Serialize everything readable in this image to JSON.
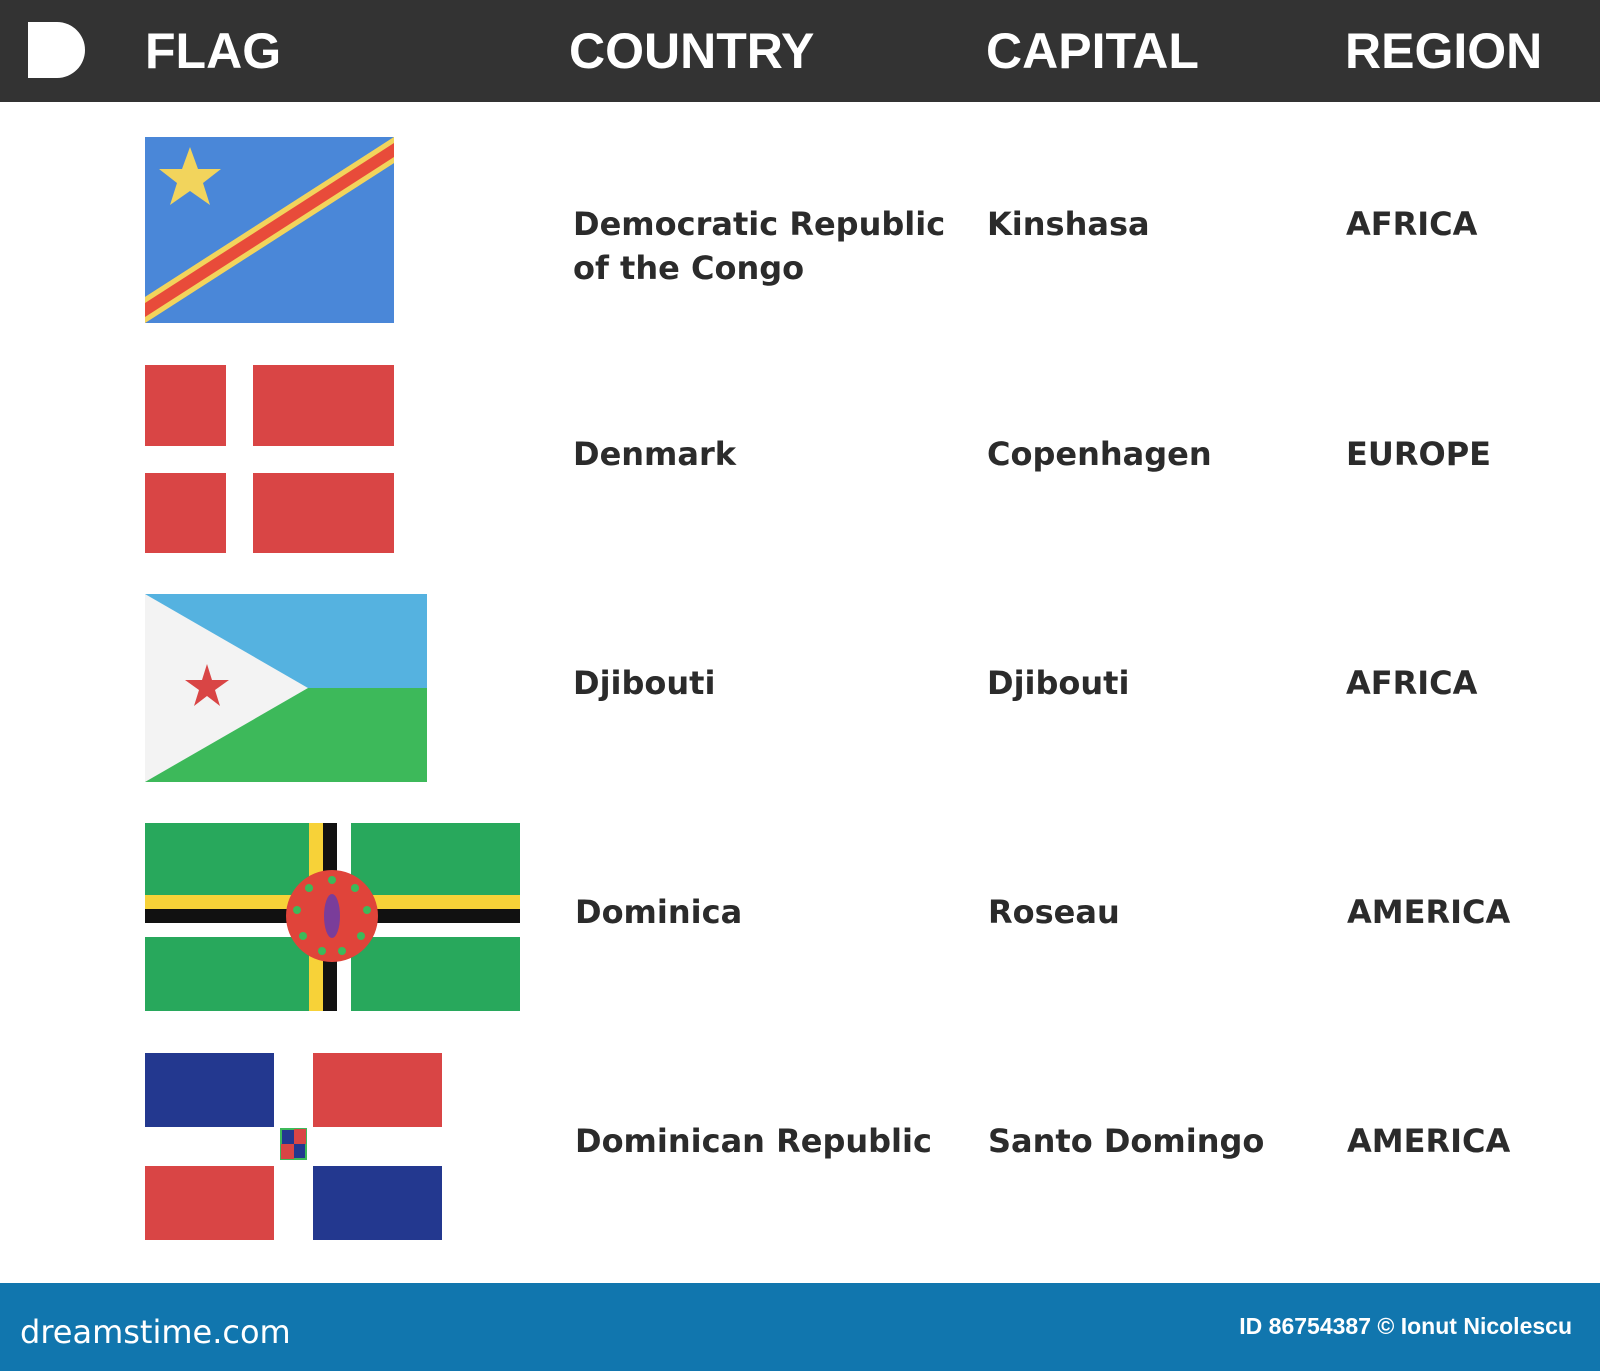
{
  "header": {
    "logo": "D",
    "columns": [
      "FLAG",
      "COUNTRY",
      "CAPITAL",
      "REGION"
    ]
  },
  "rows": [
    {
      "flag": "flag-dr-congo",
      "country": "Democratic Republic of the Congo",
      "country_lines": [
        "Democratic Republic",
        "of the Congo"
      ],
      "capital": "Kinshasa",
      "region": "AFRICA"
    },
    {
      "flag": "flag-denmark",
      "country": "Denmark",
      "capital": "Copenhagen",
      "region": "EUROPE"
    },
    {
      "flag": "flag-djibouti",
      "country": "Djibouti",
      "capital": "Djibouti",
      "region": "AFRICA"
    },
    {
      "flag": "flag-dominica",
      "country": "Dominica",
      "capital": "Roseau",
      "region": "AMERICA"
    },
    {
      "flag": "flag-dominican-republic",
      "country": "Dominican Republic",
      "capital": "Santo Domingo",
      "region": "AMERICA"
    }
  ],
  "footer": {
    "brand": "dreamstime.com",
    "credit": "ID 86754387 © Ionut Nicolescu"
  },
  "colors": {
    "header": "#333333",
    "footer": "#1176ae"
  }
}
